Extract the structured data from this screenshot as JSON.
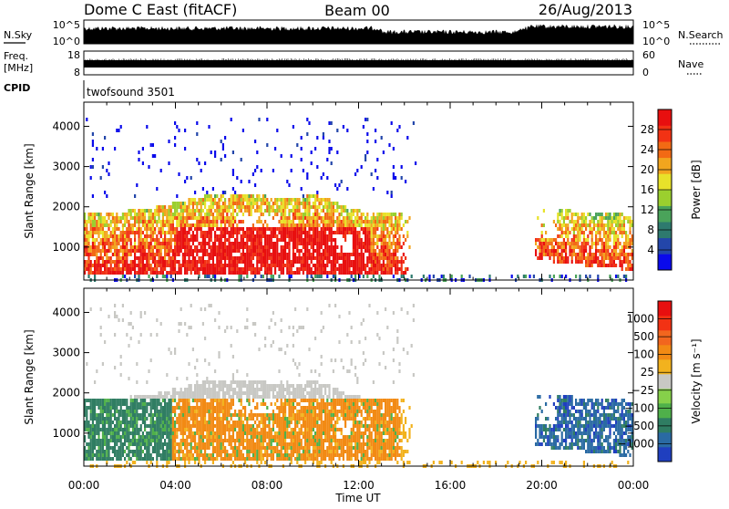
{
  "header": {
    "station": "Dome C East (fitACF)",
    "beam": "Beam 00",
    "date": "26/Aug/2013"
  },
  "panels": {
    "nsky": {
      "label": "N.Sky",
      "ticks": [
        "10^5",
        "10^0"
      ],
      "right_label": "N.Search",
      "right_ticks": [
        "10^5",
        "10^0"
      ]
    },
    "freq": {
      "label_line1": "Freq.",
      "label_line2": "[MHz]",
      "ticks": [
        "18",
        "8"
      ],
      "right_label": "Nave",
      "right_ticks": [
        "60",
        "0"
      ]
    },
    "cpid": {
      "label": "CPID",
      "program": "twofsound 3501"
    }
  },
  "chart_data": [
    {
      "type": "heatmap",
      "name": "power",
      "xlabel": "Time UT",
      "ylabel": "Slant Range [km]",
      "xlim": [
        0,
        24
      ],
      "ylim": [
        180,
        4600
      ],
      "x_ticks": [
        "00:00",
        "04:00",
        "08:00",
        "12:00",
        "16:00",
        "20:00",
        "00:00"
      ],
      "y_ticks": [
        1000,
        2000,
        3000,
        4000
      ],
      "colorbar": {
        "label": "Power [dB]",
        "range": [
          0,
          32
        ],
        "ticks": [
          "4",
          "8",
          "12",
          "16",
          "20",
          "24",
          "28"
        ],
        "colors": [
          "#0a0aeb",
          "#2346aa",
          "#2e7a6e",
          "#4aa35a",
          "#9bcf2e",
          "#e8e22a",
          "#f2a51e",
          "#f26a14",
          "#f23214",
          "#e80f0f"
        ]
      }
    },
    {
      "type": "heatmap",
      "name": "velocity",
      "xlabel": "Time UT",
      "ylabel": "Slant Range [km]",
      "xlim": [
        0,
        24
      ],
      "ylim": [
        180,
        4600
      ],
      "x_ticks": [
        "00:00",
        "04:00",
        "08:00",
        "12:00",
        "16:00",
        "20:00",
        "00:00"
      ],
      "y_ticks": [
        1000,
        2000,
        3000,
        4000
      ],
      "colorbar": {
        "label": "Velocity [m s⁻¹]",
        "ticks": [
          "1000",
          "500",
          "100",
          "25",
          "−25",
          "−100",
          "−500",
          "−1000"
        ],
        "colors": [
          "#1f3fbf",
          "#2a6aa3",
          "#2f7d62",
          "#4fb04a",
          "#86d04a",
          "#c8c8c4",
          "#f2b21e",
          "#f28a14",
          "#f2661e",
          "#f23214",
          "#e80f0f"
        ]
      }
    }
  ],
  "x_axis": {
    "label": "Time UT",
    "ticks": [
      "00:00",
      "04:00",
      "08:00",
      "12:00",
      "16:00",
      "20:00",
      "00:00"
    ]
  }
}
